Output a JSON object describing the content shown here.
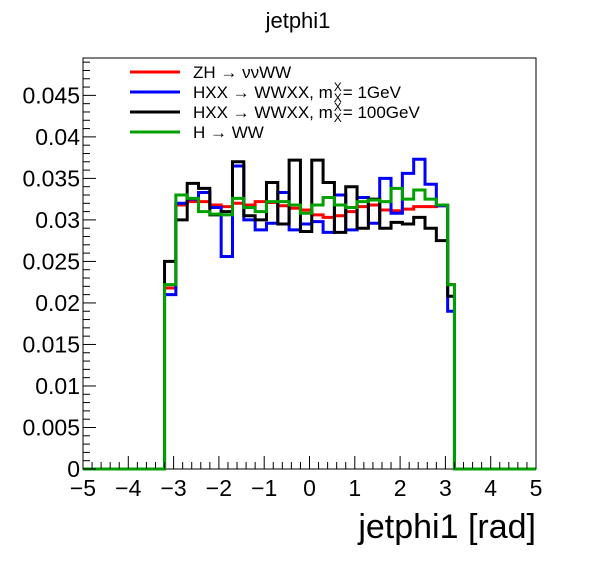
{
  "chart_data": {
    "type": "line",
    "style": "step-histogram",
    "title": "jetphi1",
    "xlabel": "jetphi1 [rad]",
    "ylabel": "",
    "xlim": [
      -5,
      5
    ],
    "ylim": [
      0,
      0.0495
    ],
    "x_ticks": [
      -5,
      -4,
      -3,
      -2,
      -1,
      0,
      1,
      2,
      3,
      4,
      5
    ],
    "x_tick_labels": [
      "−5",
      "−4",
      "−3",
      "−2",
      "−1",
      "0",
      "1",
      "2",
      "3",
      "4",
      "5"
    ],
    "y_ticks": [
      0,
      0.005,
      0.01,
      0.015,
      0.02,
      0.025,
      0.03,
      0.035,
      0.04,
      0.045
    ],
    "y_tick_labels": [
      "0",
      "0.005",
      "0.01",
      "0.015",
      "0.02",
      "0.025",
      "0.03",
      "0.035",
      "0.04",
      "0.045"
    ],
    "bin_edges": [
      -5,
      -3.2,
      -2.95,
      -2.7,
      -2.45,
      -2.2,
      -1.95,
      -1.7,
      -1.45,
      -1.2,
      -0.95,
      -0.7,
      -0.45,
      -0.2,
      0.05,
      0.3,
      0.55,
      0.8,
      1.05,
      1.3,
      1.55,
      1.8,
      2.05,
      2.3,
      2.55,
      2.8,
      3.05,
      3.2,
      5
    ],
    "legend_position": "top-left",
    "grid": false,
    "series": [
      {
        "name": "ZH → ννWW",
        "color": "#ff0000",
        "values": [
          0,
          0.0218,
          0.0318,
          0.0322,
          0.0322,
          0.0318,
          0.0316,
          0.032,
          0.0318,
          0.0322,
          0.0321,
          0.0317,
          0.0314,
          0.0312,
          0.0306,
          0.0303,
          0.0305,
          0.031,
          0.0316,
          0.0318,
          0.0312,
          0.0311,
          0.0313,
          0.0316,
          0.0316,
          0.0317,
          0.0222,
          0
        ]
      },
      {
        "name": "HXX → WWXX, m_X = 1GeV",
        "color": "#0000ff",
        "values": [
          0,
          0.021,
          0.032,
          0.0325,
          0.0333,
          0.0315,
          0.0256,
          0.0365,
          0.03,
          0.0288,
          0.0296,
          0.0333,
          0.0288,
          0.0295,
          0.0298,
          0.0285,
          0.033,
          0.0288,
          0.0327,
          0.0296,
          0.035,
          0.0308,
          0.0356,
          0.0373,
          0.0343,
          0.0317,
          0.019,
          0
        ]
      },
      {
        "name": "HXX → WWXX, m_X = 100GeV",
        "color": "#000000",
        "values": [
          0,
          0.025,
          0.03,
          0.0344,
          0.0338,
          0.0306,
          0.031,
          0.037,
          0.0305,
          0.03,
          0.0345,
          0.0295,
          0.0372,
          0.0286,
          0.0372,
          0.0345,
          0.0285,
          0.034,
          0.029,
          0.0325,
          0.029,
          0.0297,
          0.0295,
          0.0303,
          0.029,
          0.0275,
          0.0208,
          0
        ]
      },
      {
        "name": "H → WW",
        "color": "#00a000",
        "values": [
          0,
          0.0222,
          0.033,
          0.0326,
          0.031,
          0.0307,
          0.0306,
          0.0326,
          0.0315,
          0.031,
          0.0322,
          0.0322,
          0.0318,
          0.0308,
          0.0318,
          0.0327,
          0.0318,
          0.0315,
          0.0322,
          0.0324,
          0.0322,
          0.0338,
          0.0325,
          0.0336,
          0.0325,
          0.0318,
          0.0222,
          0
        ]
      }
    ],
    "legend": {
      "entries": [
        {
          "main": "ZH → ννWW",
          "rest": []
        },
        {
          "main": "HXX → WWXX, m",
          "rest": [
            {
              "sup": "X",
              "sub": "X",
              "after": " = 1GeV"
            }
          ]
        },
        {
          "main": "HXX → WWXX, m",
          "rest": [
            {
              "sup": "X",
              "sub": "X",
              "after": " = 100GeV"
            }
          ]
        },
        {
          "main": "H → WW",
          "rest": []
        }
      ]
    }
  }
}
